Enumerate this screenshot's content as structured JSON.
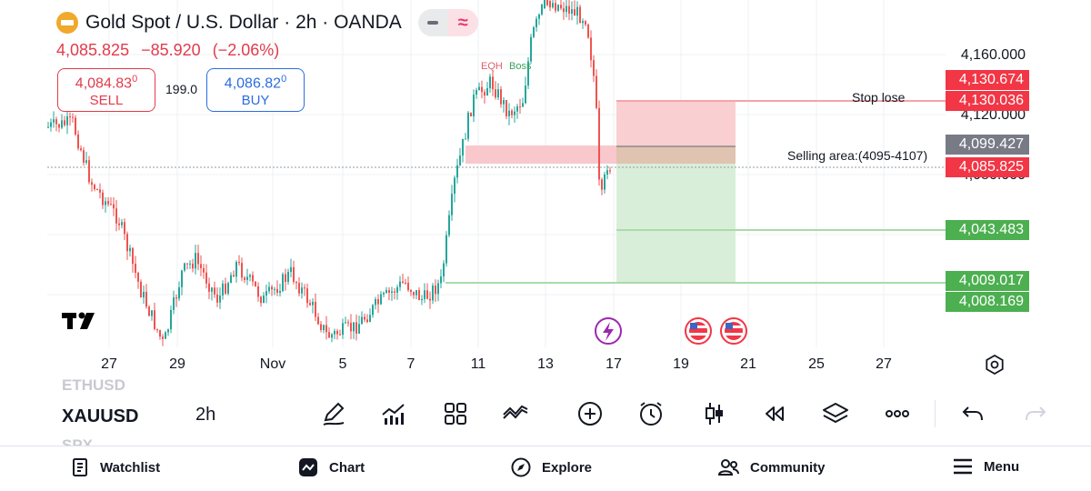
{
  "header": {
    "title": "Gold Spot / U.S. Dollar · 2h · OANDA",
    "last_price": "4,085.825",
    "change": "−85.920",
    "change_pct": "(−2.06%)",
    "toggle_icon": "wave-icon"
  },
  "trade": {
    "sell_price": "4,084.83",
    "sell_price_small": "0",
    "sell_label": "SELL",
    "spread": "199.0",
    "buy_price": "4,086.82",
    "buy_price_small": "0",
    "buy_label": "BUY"
  },
  "annotations": {
    "stop_loss": "Stop lose",
    "selling_area": "Selling area:(4095-4107)",
    "eqh": "EQH",
    "boss": "Boss"
  },
  "price_axis": {
    "labels": [
      "4,160.000",
      "4,120.000",
      "4,080.000"
    ],
    "tags": [
      {
        "value": "4,130.674",
        "color": "red"
      },
      {
        "value": "4,130.036",
        "color": "red"
      },
      {
        "value": "4,099.427",
        "color": "gray"
      },
      {
        "value": "4,085.825",
        "color": "red"
      },
      {
        "value": "4,043.483",
        "color": "green"
      },
      {
        "value": "4,009.017",
        "color": "green"
      },
      {
        "value": "4,008.169",
        "color": "green"
      }
    ]
  },
  "time_axis": [
    "27",
    "29",
    "Nov",
    "5",
    "7",
    "11",
    "13",
    "17",
    "19",
    "21",
    "25",
    "27"
  ],
  "toolbar": {
    "symbols": [
      "ETHUSD",
      "XAUUSD",
      "SPX"
    ],
    "interval": "2h",
    "icons": [
      "draw-icon",
      "indicators-icon",
      "layout-icon",
      "compare-icon",
      "add-icon",
      "alert-icon",
      "candle-type-icon",
      "replay-icon",
      "layers-icon",
      "more-icon",
      "undo-icon",
      "redo-icon"
    ]
  },
  "bottom_nav": [
    {
      "label": "Watchlist",
      "icon": "watchlist-icon"
    },
    {
      "label": "Chart",
      "icon": "chart-icon"
    },
    {
      "label": "Explore",
      "icon": "compass-icon"
    },
    {
      "label": "Community",
      "icon": "community-icon"
    },
    {
      "label": "Menu",
      "icon": "menu-icon"
    }
  ],
  "colors": {
    "up": "#26a69a",
    "down": "#ef5350",
    "sell": "#e23b4a",
    "buy": "#2b6de0",
    "stop_zone": "#f9c9cc",
    "target_zone": "#d5ecd6"
  }
}
